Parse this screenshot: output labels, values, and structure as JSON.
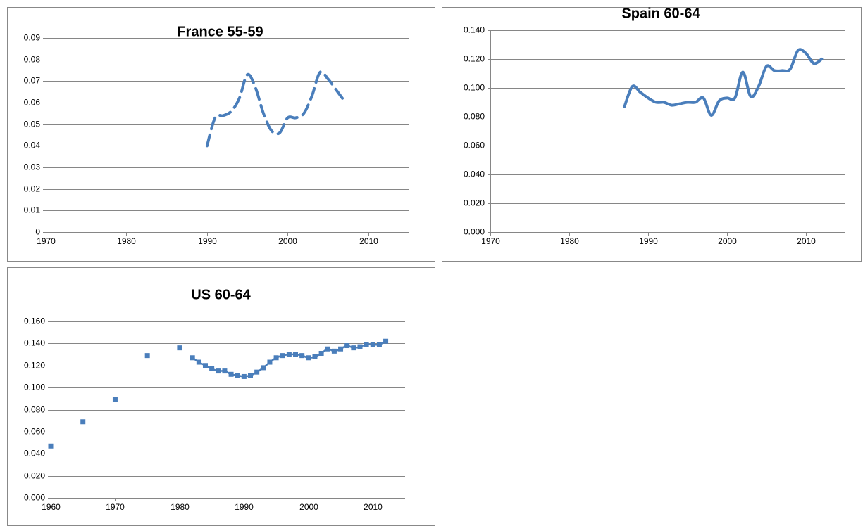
{
  "chart_data": [
    {
      "type": "line",
      "title": "France 55-59",
      "color": "#4a7ebb",
      "line_style": "dashed",
      "smooth": true,
      "grid": true,
      "x": [
        1990,
        1991,
        1992,
        1993,
        1994,
        1995,
        1996,
        1997,
        1998,
        1999,
        2000,
        2001,
        2002,
        2003,
        2004,
        2005,
        2006,
        2007
      ],
      "values": [
        0.04,
        0.053,
        0.054,
        0.056,
        0.062,
        0.073,
        0.067,
        0.055,
        0.047,
        0.046,
        0.053,
        0.053,
        0.055,
        0.063,
        0.074,
        0.071,
        0.066,
        0.061
      ],
      "xlim": [
        1970,
        2015
      ],
      "xticks": [
        1970,
        1980,
        1990,
        2000,
        2010
      ],
      "ylim": [
        0,
        0.09
      ],
      "yticks": [
        0,
        0.01,
        0.02,
        0.03,
        0.04,
        0.05,
        0.06,
        0.07,
        0.08,
        0.09
      ]
    },
    {
      "type": "line",
      "title": "Spain 60-64",
      "color": "#4a7ebb",
      "line_style": "solid",
      "smooth": true,
      "grid": true,
      "x": [
        1987,
        1988,
        1989,
        1990,
        1991,
        1992,
        1993,
        1994,
        1995,
        1996,
        1997,
        1998,
        1999,
        2000,
        2001,
        2002,
        2003,
        2004,
        2005,
        2006,
        2007,
        2008,
        2009,
        2010,
        2011,
        2012
      ],
      "values": [
        0.087,
        0.101,
        0.097,
        0.093,
        0.09,
        0.09,
        0.088,
        0.089,
        0.09,
        0.09,
        0.093,
        0.081,
        0.091,
        0.093,
        0.093,
        0.111,
        0.094,
        0.101,
        0.115,
        0.112,
        0.112,
        0.113,
        0.126,
        0.124,
        0.117,
        0.12
      ],
      "xlim": [
        1970,
        2015
      ],
      "xticks": [
        1970,
        1980,
        1990,
        2000,
        2010
      ],
      "ylim": [
        0,
        0.14
      ],
      "yticks": [
        {
          "value": 0,
          "label": "0.000"
        },
        {
          "value": 0.02,
          "label": "0.020"
        },
        {
          "value": 0.04,
          "label": "0.040"
        },
        {
          "value": 0.06,
          "label": "0.060"
        },
        {
          "value": 0.08,
          "label": "0.080"
        },
        {
          "value": 0.1,
          "label": "0.100"
        },
        {
          "value": 0.12,
          "label": "0.120"
        },
        {
          "value": 0.14,
          "label": "0.140"
        }
      ]
    },
    {
      "type": "scatter",
      "title": "US 60-64",
      "color": "#4a7ebb",
      "markers": true,
      "connect_annual": true,
      "grid": true,
      "x": [
        1960,
        1965,
        1970,
        1975,
        1980,
        1982,
        1983,
        1984,
        1985,
        1986,
        1987,
        1988,
        1989,
        1990,
        1991,
        1992,
        1993,
        1994,
        1995,
        1996,
        1997,
        1998,
        1999,
        2000,
        2001,
        2002,
        2003,
        2004,
        2005,
        2006,
        2007,
        2008,
        2009,
        2010,
        2011,
        2012
      ],
      "values": [
        0.047,
        0.069,
        0.089,
        0.129,
        0.136,
        0.127,
        0.123,
        0.12,
        0.117,
        0.115,
        0.115,
        0.112,
        0.111,
        0.11,
        0.111,
        0.114,
        0.118,
        0.123,
        0.127,
        0.129,
        0.13,
        0.13,
        0.129,
        0.127,
        0.128,
        0.131,
        0.135,
        0.133,
        0.135,
        0.138,
        0.136,
        0.137,
        0.139,
        0.139,
        0.139,
        0.142
      ],
      "xlim": [
        1960,
        2015
      ],
      "xticks": [
        1960,
        1970,
        1980,
        1990,
        2000,
        2010
      ],
      "ylim": [
        0,
        0.16
      ],
      "yticks": [
        {
          "value": 0,
          "label": "0.000"
        },
        {
          "value": 0.02,
          "label": "0.020"
        },
        {
          "value": 0.04,
          "label": "0.040"
        },
        {
          "value": 0.06,
          "label": "0.060"
        },
        {
          "value": 0.08,
          "label": "0.080"
        },
        {
          "value": 0.1,
          "label": "0.100"
        },
        {
          "value": 0.12,
          "label": "0.120"
        },
        {
          "value": 0.14,
          "label": "0.140"
        },
        {
          "value": 0.16,
          "label": "0.160"
        }
      ]
    }
  ]
}
